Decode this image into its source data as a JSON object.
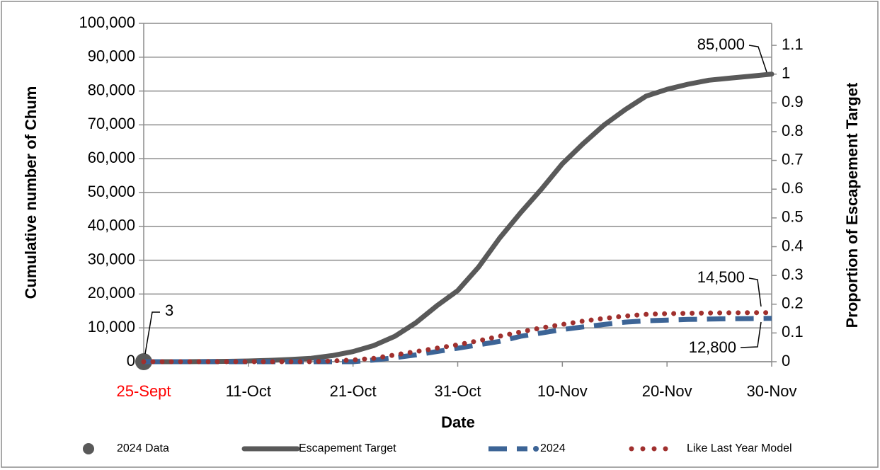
{
  "chart_data": {
    "type": "line",
    "x_label": "Date",
    "y_label": "Cumulative number of Chum",
    "y2_label": "Proportion of Escapement Target",
    "x": [
      0,
      2,
      4,
      6,
      8,
      10,
      12,
      14,
      16,
      18,
      20,
      22,
      24,
      26,
      28,
      30,
      32,
      34,
      36,
      38,
      40,
      42,
      44,
      46,
      48,
      50,
      52,
      54,
      56,
      58,
      60
    ],
    "xlim": [
      0,
      60
    ],
    "xticks": [
      {
        "value": 0,
        "label": "25-Sept"
      },
      {
        "value": 10,
        "label": "11-Oct"
      },
      {
        "value": 20,
        "label": "21-Oct"
      },
      {
        "value": 30,
        "label": "31-Oct"
      },
      {
        "value": 40,
        "label": "10-Nov"
      },
      {
        "value": 50,
        "label": "20-Nov"
      },
      {
        "value": 60,
        "label": "30-Nov"
      }
    ],
    "xtick_label_colors": [
      "#ff0000",
      "#000000",
      "#000000",
      "#000000",
      "#000000",
      "#000000",
      "#000000"
    ],
    "ylim": [
      0,
      100000
    ],
    "yticks": [
      0,
      {
        "value": 10000,
        "label": "10,000"
      },
      {
        "value": 20000,
        "label": "20,000"
      },
      {
        "value": 30000,
        "label": "30,000"
      },
      {
        "value": 40000,
        "label": "40,000"
      },
      {
        "value": 50000,
        "label": "50,000"
      },
      {
        "value": 60000,
        "label": "60,000"
      },
      {
        "value": 70000,
        "label": "70,000"
      },
      {
        "value": 80000,
        "label": "80,000"
      },
      {
        "value": 90000,
        "label": "90,000"
      },
      {
        "value": 100000,
        "label": "100,000"
      }
    ],
    "y2lim": [
      0,
      1.17647
    ],
    "y2ticks": [
      0,
      0.1,
      0.2,
      0.3,
      0.4,
      0.5,
      0.6,
      0.7,
      0.8,
      0.9,
      1,
      1.1
    ],
    "grid": true,
    "legend": "bottom",
    "series": [
      {
        "name": "2024 Data",
        "color": "#595959",
        "style": "marker",
        "x": [
          0
        ],
        "values": [
          3
        ]
      },
      {
        "name": "Escapement Target",
        "color": "#595959",
        "style": "solid",
        "values": [
          0,
          0,
          0,
          50,
          100,
          200,
          400,
          650,
          1000,
          1800,
          3000,
          4800,
          7500,
          11500,
          16500,
          21000,
          28000,
          36500,
          44000,
          51000,
          58500,
          64500,
          70000,
          74500,
          78500,
          80500,
          82000,
          83200,
          83800,
          84400,
          85000
        ]
      },
      {
        "name": "2024",
        "color": "#3c6496",
        "style": "dashed",
        "values": [
          0,
          0,
          0,
          0,
          0,
          0,
          0,
          0,
          0,
          0,
          0,
          500,
          1200,
          2000,
          3000,
          4000,
          5000,
          6000,
          7500,
          8500,
          9500,
          10300,
          11000,
          11700,
          12100,
          12300,
          12500,
          12600,
          12700,
          12750,
          12800
        ]
      },
      {
        "name": "Like Last Year Model",
        "color": "#a0302e",
        "style": "dotted",
        "values": [
          0,
          0,
          0,
          0,
          0,
          0,
          0,
          0,
          0,
          200,
          500,
          1000,
          2000,
          3000,
          4000,
          5000,
          6200,
          7500,
          8800,
          10000,
          11000,
          12000,
          12800,
          13500,
          14000,
          14200,
          14300,
          14400,
          14450,
          14500,
          14500
        ]
      }
    ],
    "annotations": [
      "3",
      "85,000",
      "14,500",
      "12,800"
    ]
  }
}
